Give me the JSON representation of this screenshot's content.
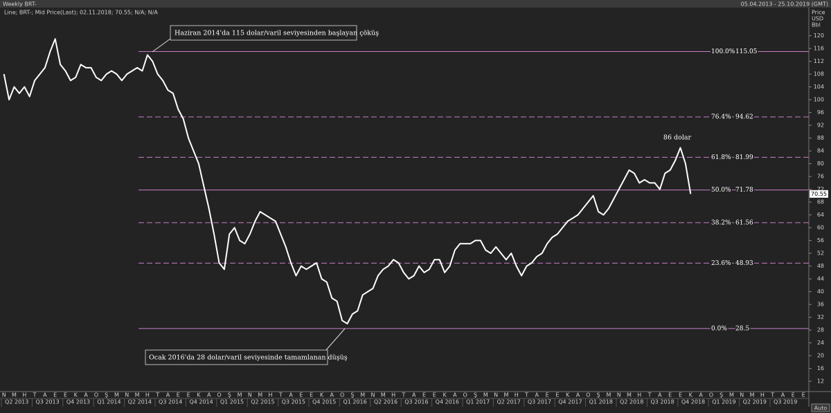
{
  "chart_data": {
    "type": "line",
    "title": "Weekly BRT-",
    "date_range": "05.04.2013 - 25.10.2019 (GMT)",
    "legend_text": "Line; BRT-; Mid Price(Last); 02.11.2018; 70.55; N/A; N/A",
    "y_label": [
      "Price",
      "USD",
      "Bbl"
    ],
    "scale_mode": "Auto",
    "last_price": 70.55,
    "categories": [
      "N",
      null,
      "M",
      null,
      "H",
      null,
      "T",
      null,
      "A",
      null,
      "E",
      null,
      "E",
      null,
      "K",
      null,
      "A",
      null,
      "O",
      null,
      "Ş",
      null,
      "M",
      null,
      "N",
      null,
      "M",
      null,
      "H",
      null,
      "T",
      null,
      "A",
      null,
      "E",
      null,
      "E",
      null,
      "K",
      null,
      "A",
      null,
      "O",
      null,
      "Ş",
      null,
      "M",
      null,
      "N",
      null,
      "M",
      null,
      "H",
      null,
      "T",
      null,
      "A",
      null,
      "E",
      null,
      "E",
      null,
      "K",
      null,
      "A",
      null,
      "O",
      null,
      "Ş",
      null,
      "M",
      null,
      "N",
      null,
      "M",
      null,
      "H",
      null,
      "T",
      null,
      "A",
      null,
      "E",
      null,
      "E",
      null,
      "K",
      null,
      "A",
      null,
      "O",
      null,
      "Ş",
      null,
      "M",
      null,
      "N",
      null,
      "M",
      null,
      "H",
      null,
      "T",
      null,
      "A",
      null,
      "E",
      null,
      "E",
      null,
      "K",
      null,
      "A",
      null,
      "O",
      null,
      "Ş",
      null,
      "M",
      null,
      "N",
      null,
      "M",
      null,
      "H",
      null,
      "T",
      null,
      "A",
      null,
      "E",
      null,
      "E",
      null,
      "K",
      null,
      "A",
      null,
      "O",
      null,
      "Ş",
      null,
      "M",
      null,
      "N",
      null,
      "M",
      null,
      "H",
      null,
      "T",
      null,
      "A",
      null,
      "E",
      null,
      "E",
      null
    ],
    "quarters": [
      "Q2 2013",
      "Q3 2013",
      "Q4 2013",
      "Q1 2014",
      "Q2 2014",
      "Q3 2014",
      "Q4 2014",
      "Q1 2015",
      "Q2 2015",
      "Q3 2015",
      "Q4 2015",
      "Q1 2016",
      "Q2 2016",
      "Q3 2016",
      "Q4 2016",
      "Q1 2017",
      "Q2 2017",
      "Q3 2017",
      "Q4 2017",
      "Q1 2018",
      "Q2 2018",
      "Q3 2018",
      "Q4 2018",
      "Q1 2019",
      "Q2 2019",
      "Q3 2019"
    ],
    "series": [
      {
        "name": "BRT-",
        "color": "#ffffff",
        "values": [
          108,
          100,
          104,
          102,
          104,
          101,
          106,
          108,
          110,
          115,
          119,
          111,
          109,
          106,
          107,
          111,
          110,
          110,
          107,
          106,
          108,
          109,
          108,
          106,
          108,
          109,
          110,
          109,
          114,
          112,
          108,
          106,
          103,
          102,
          97,
          94,
          88,
          84,
          80,
          73,
          66,
          58,
          49,
          47,
          58,
          60,
          56,
          55,
          58,
          62,
          65,
          64,
          63,
          62,
          58,
          54,
          49,
          45,
          48,
          47,
          48,
          49,
          44,
          43,
          38,
          37,
          31,
          30,
          33,
          34,
          39,
          40,
          41,
          45,
          47,
          48,
          50,
          49,
          46,
          44,
          45,
          48,
          46,
          47,
          50,
          50,
          46,
          48,
          53,
          55,
          55,
          55,
          56,
          56,
          53,
          52,
          54,
          52,
          50,
          52,
          48,
          45,
          48,
          49,
          51,
          52,
          55,
          57,
          58,
          60,
          62,
          63,
          64,
          66,
          68,
          70,
          65,
          64,
          66,
          69,
          72,
          75,
          78,
          77,
          74,
          75,
          74,
          74,
          72,
          77,
          78,
          81,
          85,
          80,
          70.55,
          null,
          null,
          null,
          null,
          null,
          null,
          null,
          null,
          null,
          null,
          null,
          null,
          null,
          null,
          null,
          null,
          null,
          null,
          null,
          null,
          null,
          null,
          null
        ]
      }
    ],
    "ylim": [
      9,
      129
    ],
    "yticks": [
      12,
      16,
      20,
      24,
      28,
      32,
      36,
      40,
      44,
      48,
      52,
      56,
      60,
      64,
      68,
      72,
      76,
      80,
      84,
      88,
      92,
      96,
      100,
      104,
      108,
      112,
      116,
      120
    ],
    "fib_levels": [
      {
        "label": "100.0%",
        "value": 115.05,
        "dashed": false
      },
      {
        "label": "76.4%",
        "value": 94.62,
        "dashed": true
      },
      {
        "label": "61.8%",
        "value": 81.99,
        "dashed": true
      },
      {
        "label": "50.0%",
        "value": 71.78,
        "dashed": false
      },
      {
        "label": "38.2%",
        "value": 61.56,
        "dashed": true
      },
      {
        "label": "23.6%",
        "value": 48.93,
        "dashed": true
      },
      {
        "label": "0.0%",
        "value": 28.5,
        "dashed": false
      }
    ],
    "fib_color": "#c67fc6",
    "annotations": [
      "Haziran 2014'da 115 dolar/varil seviyesinden başlayan çöküş",
      "Ocak 2016'da 28 dolar/varil seviyesinde tamamlanan düşüş",
      "86 dolar"
    ]
  }
}
